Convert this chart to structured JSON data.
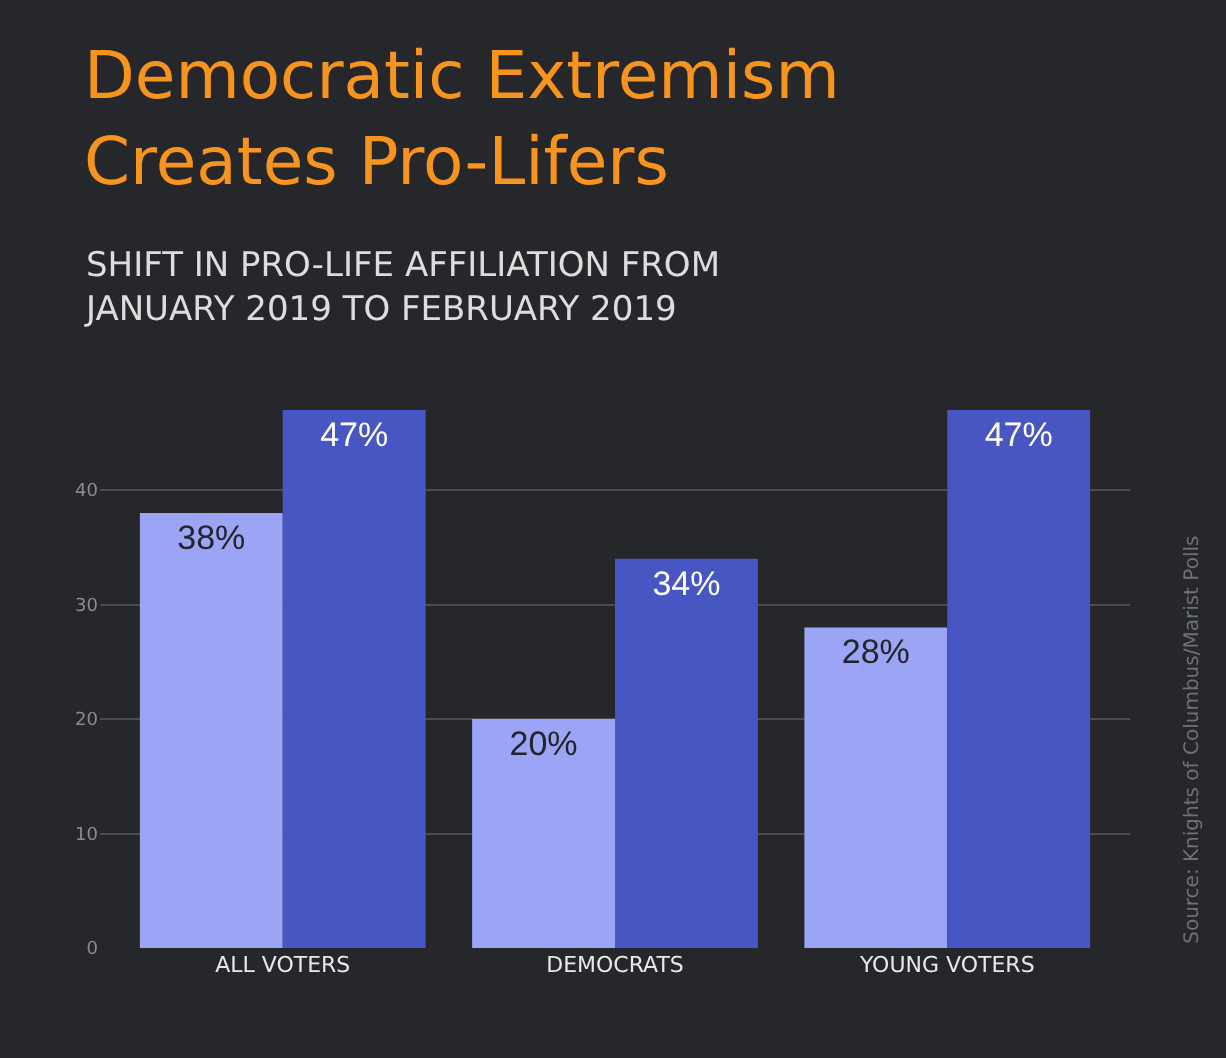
{
  "chart_data": {
    "type": "bar",
    "title": "Democratic Extremism\nCreates Pro-Lifers",
    "subtitle": "SHIFT IN PRO-LIFE AFFILIATION FROM\nJANUARY 2019 TO FEBRUARY 2019",
    "categories": [
      "ALL VOTERS",
      "DEMOCRATS",
      "YOUNG VOTERS"
    ],
    "series": [
      {
        "color": "#9ba4f5",
        "values": [
          38,
          20,
          28
        ],
        "value_labels": [
          "38%",
          "20%",
          "28%"
        ]
      },
      {
        "color": "#4856c4",
        "values": [
          47,
          34,
          47
        ],
        "value_labels": [
          "47%",
          "34%",
          "47%"
        ]
      }
    ],
    "ylim": [
      0,
      47
    ],
    "yticks": [
      0,
      10,
      20,
      30,
      40
    ],
    "grid": "y",
    "annotations": [
      "Source: Knights of Columbus/Marist Polls"
    ]
  }
}
